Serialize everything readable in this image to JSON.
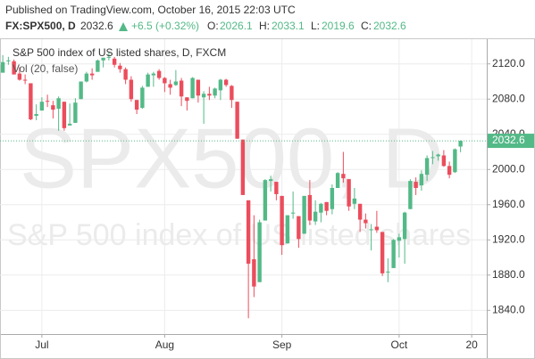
{
  "header": {
    "published": "Published on TradingView.com, October 16, 2015 22:03 UTC",
    "symbol": "FX:SPX500, D",
    "last": 2032.6,
    "change": "+6.5 (+0.32%)",
    "o_label": "O:",
    "open": 2026.1,
    "h_label": "H:",
    "high": 2033.1,
    "l_label": "L:",
    "low": 2019.6,
    "c_label": "C:",
    "close": 2032.6
  },
  "watermark": {
    "symbol": "SPX500, D",
    "description": "S&P 500 index of US listed shares"
  },
  "indicator": "Vol (20, false)",
  "chart_data": {
    "type": "candlestick",
    "categories": [
      null,
      null,
      null,
      null,
      null,
      null,
      null,
      "Jul",
      null,
      null,
      null,
      null,
      null,
      null,
      null,
      null,
      null,
      null,
      null,
      null,
      null,
      null,
      null,
      null,
      null,
      null,
      null,
      null,
      null,
      "Aug",
      null,
      null,
      null,
      null,
      null,
      null,
      null,
      null,
      null,
      null,
      null,
      null,
      null,
      null,
      null,
      null,
      null,
      null,
      null,
      null,
      "Sep",
      null,
      null,
      null,
      null,
      null,
      null,
      null,
      null,
      null,
      null,
      null,
      null,
      null,
      null,
      null,
      null,
      null,
      null,
      null,
      null,
      "Oct",
      null,
      null,
      null,
      null,
      null,
      null,
      null,
      null,
      null,
      null,
      null,
      null,
      "20"
    ],
    "series": [
      {
        "name": "S&P 500 index of US listed shares, D, FXCM",
        "up_color": "#53b987",
        "down_color": "#eb4d5c",
        "open": [
          2110,
          2124,
          2123,
          2109,
          2102,
          2098,
          2061,
          2067,
          2078,
          2073,
          2069,
          2077,
          2050,
          2053,
          2080,
          2100,
          2109,
          2111,
          2124,
          2127,
          2126,
          2118,
          2114,
          2102,
          2079,
          2070,
          2094,
          2107,
          2112,
          2104,
          2097,
          2096,
          2101,
          2082,
          2081,
          2102,
          2082,
          2086,
          2084,
          2090,
          2102,
          2095,
          2077,
          2034,
          1965,
          1898,
          1872,
          1942,
          1987,
          1986,
          1970,
          1916,
          1950,
          1947,
          1927,
          1971,
          1941,
          1951,
          1963,
          1955,
          1979,
          1995,
          1989,
          1961,
          1961,
          1943,
          1932,
          1935,
          1929,
          1883,
          1888,
          1919,
          1921,
          1955,
          1986,
          1982,
          1994,
          2014,
          2015,
          2016,
          2004,
          1997,
          2026.1,
          null,
          null
        ],
        "high": [
          2130,
          2128,
          2125,
          2116,
          2108,
          2098,
          2074,
          2082,
          2085,
          2078,
          2083,
          2077,
          2075,
          2081,
          2100,
          2111,
          2115,
          2125,
          2127,
          2133,
          2128,
          2121,
          2116,
          2106,
          2079,
          2095,
          2110,
          2111,
          2114,
          2105,
          2102,
          2113,
          2104,
          2082,
          2105,
          2102,
          2089,
          2094,
          2093,
          2103,
          2103,
          2096,
          2077,
          2034,
          1965,
          1948,
          1943,
          1989,
          1993,
          1986,
          1970,
          1948,
          1975,
          1947,
          1970,
          1988,
          1965,
          1962,
          1963,
          1983,
          1997,
          2020,
          1989,
          1979,
          1961,
          1950,
          1938,
          1953,
          1929,
          1899,
          1921,
          1927,
          1952,
          1989,
          1991,
          1999,
          2016,
          2021,
          2018,
          2022,
          2009,
          2024,
          2033.1,
          null,
          null
        ],
        "low": [
          2110,
          2119,
          2108,
          2101,
          2097,
          2056,
          2056,
          2067,
          2071,
          2058,
          2044,
          2044,
          2050,
          2053,
          2080,
          2099,
          2102,
          2111,
          2116,
          2124,
          2116,
          2110,
          2097,
          2077,
          2063,
          2069,
          2094,
          2094,
          2102,
          2088,
          2085,
          2095,
          2072,
          2067,
          2081,
          2076,
          2052,
          2079,
          2081,
          2079,
          2094,
          2070,
          2035,
          1971,
          1831,
          1855,
          1872,
          1942,
          1975,
          1965,
          1903,
          1916,
          1944,
          1911,
          1927,
          1937,
          1937,
          1940,
          1948,
          1949,
          1979,
          1985,
          1953,
          1955,
          1929,
          1933,
          1908,
          1928,
          1879,
          1872,
          1888,
          1900,
          1893,
          1955,
          1971,
          1976,
          1987,
          2006,
          2010,
          2003,
          1990,
          1996,
          2019.6,
          null,
          null
        ],
        "close": [
          2122,
          2124,
          2108,
          2102,
          2101,
          2057,
          2063,
          2077,
          2077,
          2068,
          2081,
          2047,
          2052,
          2076,
          2100,
          2109,
          2107,
          2124,
          2127,
          2128,
          2119,
          2114,
          2102,
          2080,
          2068,
          2093,
          2108,
          2109,
          2104,
          2098,
          2093,
          2100,
          2083,
          2078,
          2104,
          2084,
          2086,
          2084,
          2092,
          2102,
          2096,
          2079,
          2035,
          1971,
          1893,
          1867,
          1940,
          1988,
          1989,
          1972,
          1914,
          1948,
          1951,
          1921,
          1970,
          1942,
          1952,
          1961,
          1953,
          1979,
          1996,
          1990,
          1958,
          1967,
          1943,
          1939,
          1932,
          1931,
          1882,
          1884,
          1920,
          1923,
          1951,
          1987,
          1979,
          1995,
          2013,
          2014,
          2017,
          2004,
          1994,
          2023,
          2032.6,
          null,
          null
        ]
      }
    ],
    "ylim": [
      1814,
      2142
    ],
    "yticks": [
      {
        "value": 1840,
        "label": "1840.0"
      },
      {
        "value": 1880,
        "label": "1880.0"
      },
      {
        "value": 1920,
        "label": "1920.0"
      },
      {
        "value": 1960,
        "label": "1960.0"
      },
      {
        "value": 2000,
        "label": "2000.0"
      },
      {
        "value": 2040,
        "label": "2040.0"
      },
      {
        "value": 2080,
        "label": "2080.0"
      },
      {
        "value": 2120,
        "label": "2120.0"
      }
    ],
    "grid": true
  }
}
